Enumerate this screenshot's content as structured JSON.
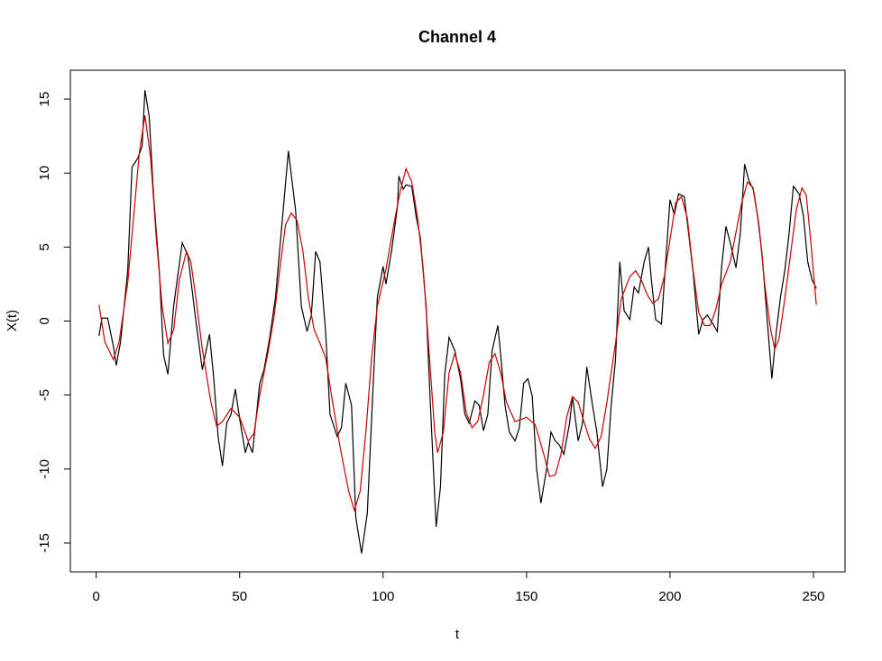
{
  "chart_data": {
    "type": "line",
    "title": "Channel 4",
    "x_label": "t",
    "y_label": "X(t)",
    "xlim": [
      -9,
      261
    ],
    "ylim": [
      -16.95,
      16.95
    ],
    "xticks": [
      0,
      50,
      100,
      150,
      200,
      250
    ],
    "yticks": [
      -15,
      -10,
      -5,
      0,
      5,
      10,
      15
    ],
    "series": [
      {
        "color": "#000000",
        "x": [
          1,
          2,
          4,
          6,
          7,
          8.5,
          11,
          12.5,
          14.5,
          16,
          17,
          18.5,
          20,
          22,
          23.5,
          25,
          27,
          30,
          32,
          34.5,
          37,
          38,
          39.5,
          41,
          42.5,
          44,
          45.5,
          47,
          48.5,
          50,
          52,
          53,
          54.5,
          57,
          58.5,
          60.5,
          62.5,
          65,
          67,
          69.5,
          71.5,
          73.5,
          75,
          76.5,
          78,
          80,
          81.5,
          84,
          85.5,
          87,
          89,
          90.5,
          92.5,
          94.5,
          96.5,
          98,
          100,
          101,
          103,
          105,
          105.5,
          107,
          108,
          110,
          111.5,
          113,
          115,
          116.5,
          118.5,
          120,
          121.5,
          123,
          125,
          127,
          128.5,
          130,
          132,
          133.5,
          135,
          136.5,
          138,
          140,
          141,
          142.5,
          144,
          146,
          147.5,
          149,
          150.5,
          152,
          153.5,
          155,
          157,
          158.5,
          160,
          161.5,
          163,
          165,
          166,
          168,
          169.5,
          171,
          173,
          174.5,
          176.5,
          178,
          179.5,
          181,
          182.5,
          184,
          186,
          187.5,
          189,
          191,
          192.5,
          193.5,
          195,
          197,
          198.5,
          200,
          201.5,
          203,
          205,
          206.5,
          208,
          210,
          211.5,
          213,
          215,
          216.5,
          218,
          219.5,
          221,
          223,
          224.5,
          226,
          227.5,
          229,
          230.5,
          232,
          234,
          235.5,
          237,
          238.5,
          240,
          241.5,
          243,
          245,
          246.5,
          248,
          249.5,
          251
        ],
        "values": [
          -1.0,
          0.2,
          0.2,
          -1.7,
          -3.0,
          -1.4,
          3.4,
          10.4,
          11.0,
          11.8,
          15.6,
          13.8,
          8.5,
          3.4,
          -2.3,
          -3.6,
          1.0,
          5.3,
          4.4,
          0.4,
          -3.3,
          -2.3,
          -0.9,
          -3.9,
          -7.8,
          -9.8,
          -6.9,
          -6.3,
          -4.6,
          -6.6,
          -8.9,
          -8.2,
          -8.9,
          -4.2,
          -3.3,
          -1.1,
          1.6,
          7.1,
          11.5,
          7.5,
          1.0,
          -0.7,
          0.4,
          4.7,
          4.0,
          -0.8,
          -6.3,
          -7.8,
          -7.2,
          -4.2,
          -5.7,
          -13.3,
          -15.7,
          -13.0,
          -4.5,
          1.6,
          3.7,
          2.5,
          4.8,
          7.7,
          9.8,
          8.9,
          9.2,
          9.1,
          7.1,
          5.6,
          1.0,
          -5.7,
          -13.9,
          -11.2,
          -3.6,
          -1.1,
          -2.0,
          -3.9,
          -6.3,
          -6.9,
          -5.4,
          -5.7,
          -7.4,
          -6.3,
          -2.0,
          -0.3,
          -2.3,
          -5.7,
          -7.5,
          -8.1,
          -7.2,
          -4.2,
          -3.9,
          -5.1,
          -10.0,
          -12.3,
          -10.0,
          -7.5,
          -8.1,
          -8.4,
          -9.0,
          -6.9,
          -5.1,
          -8.1,
          -6.9,
          -3.1,
          -5.7,
          -7.5,
          -11.2,
          -10.0,
          -5.7,
          -2.6,
          4.0,
          0.7,
          0.1,
          2.3,
          1.9,
          4.0,
          5.0,
          2.8,
          0.1,
          -0.2,
          4.0,
          8.2,
          7.2,
          8.6,
          8.4,
          5.9,
          3.4,
          -0.9,
          0.1,
          0.4,
          -0.2,
          -0.7,
          3.7,
          6.4,
          5.3,
          3.6,
          5.9,
          10.6,
          9.5,
          8.9,
          7.1,
          4.7,
          -0.2,
          -3.9,
          -0.8,
          1.6,
          3.4,
          5.9,
          9.1,
          8.6,
          7.1,
          4.0,
          2.8,
          2.2
        ]
      },
      {
        "color": "#cc0000",
        "x": [
          1,
          3,
          6,
          8,
          11,
          13.5,
          15,
          17,
          19,
          21,
          23,
          25,
          27,
          29,
          31.5,
          33,
          35,
          37,
          40,
          42,
          44,
          47,
          50,
          53,
          55,
          57,
          60,
          62,
          64,
          66,
          68,
          70,
          72,
          74,
          76,
          78,
          80,
          82,
          85,
          88,
          90,
          92,
          94,
          96,
          98,
          101,
          104,
          106,
          108,
          110,
          112,
          114,
          116,
          118,
          119,
          121,
          123,
          125,
          127,
          129,
          131,
          133,
          135,
          137,
          139,
          141,
          143,
          146,
          150,
          153,
          156,
          158,
          160,
          162,
          164,
          166,
          168,
          170,
          172,
          174,
          176,
          178,
          181,
          183,
          186,
          188,
          190,
          192,
          194,
          196,
          198,
          200,
          202,
          204,
          206,
          208,
          210,
          212,
          214,
          216,
          218,
          221,
          223,
          225,
          227,
          229,
          231,
          233,
          235,
          236.5,
          238,
          240,
          242,
          244,
          246,
          247.5,
          249,
          251
        ],
        "values": [
          1.1,
          -1.4,
          -2.6,
          -1.4,
          2.6,
          8.0,
          11.3,
          13.9,
          11.0,
          5.5,
          1.0,
          -1.5,
          -0.6,
          2.8,
          4.7,
          4.0,
          1.2,
          -1.9,
          -5.5,
          -7.1,
          -6.8,
          -5.9,
          -6.5,
          -8.1,
          -7.6,
          -5.0,
          -2.0,
          0.3,
          3.5,
          6.5,
          7.3,
          6.8,
          4.8,
          1.5,
          -0.6,
          -1.5,
          -2.5,
          -5.0,
          -8.5,
          -11.5,
          -12.8,
          -11.5,
          -7.5,
          -2.5,
          1.0,
          3.5,
          6.8,
          8.8,
          10.3,
          9.4,
          7.0,
          3.5,
          -2.0,
          -7.5,
          -8.9,
          -7.5,
          -3.5,
          -2.2,
          -3.5,
          -6.2,
          -7.2,
          -6.8,
          -5.0,
          -2.8,
          -2.2,
          -3.5,
          -5.5,
          -6.8,
          -6.5,
          -7.0,
          -9.0,
          -10.5,
          -10.4,
          -9.0,
          -6.5,
          -5.1,
          -5.5,
          -6.8,
          -8.0,
          -8.6,
          -7.8,
          -5.5,
          -1.5,
          1.5,
          3.0,
          3.4,
          2.8,
          1.8,
          1.2,
          1.5,
          3.0,
          5.5,
          8.0,
          8.4,
          7.0,
          3.5,
          0.6,
          -0.3,
          -0.3,
          0.8,
          2.5,
          4.0,
          6.0,
          8.0,
          9.4,
          9.0,
          6.5,
          2.5,
          -0.5,
          -1.9,
          -1.2,
          1.5,
          4.5,
          7.5,
          9.0,
          8.5,
          5.5,
          1.1
        ]
      }
    ]
  }
}
